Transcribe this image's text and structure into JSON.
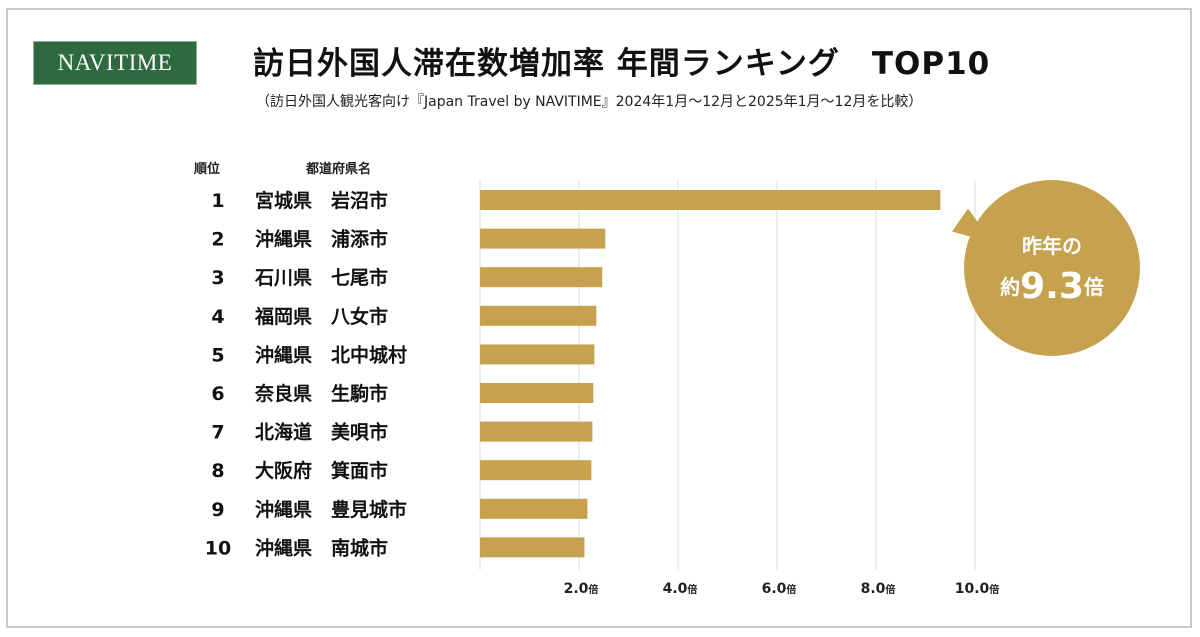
{
  "logo": "NAVITIME",
  "title": "訪日外国人滞在数増加率 年間ランキング　TOP10",
  "subtitle": "（訪日外国人観光客向け『Japan Travel by NAVITIME』2024年1月～12月と2025年1月～12月を比較）",
  "headers": {
    "rank": "順位",
    "name": "都道府県名"
  },
  "callout": {
    "line1": "昨年の",
    "prefix": "約",
    "value": "9.3",
    "suffix": "倍"
  },
  "chart_data": {
    "type": "bar",
    "orientation": "horizontal",
    "ranks": [
      "1",
      "2",
      "3",
      "4",
      "5",
      "6",
      "7",
      "8",
      "9",
      "10"
    ],
    "categories": [
      "宮城県　岩沼市",
      "沖縄県　浦添市",
      "石川県　七尾市",
      "福岡県　八女市",
      "沖縄県　北中城村",
      "奈良県　生駒市",
      "北海道　美唄市",
      "大阪府　箕面市",
      "沖縄県　豊見城市",
      "沖縄県　南城市"
    ],
    "values": [
      9.3,
      2.53,
      2.47,
      2.35,
      2.31,
      2.29,
      2.27,
      2.25,
      2.17,
      2.11
    ],
    "xlim": [
      0,
      10
    ],
    "ticks": [
      2,
      4,
      6,
      8,
      10
    ],
    "tick_labels": [
      "2.0",
      "4.0",
      "6.0",
      "8.0",
      "10.0"
    ],
    "tick_unit": "倍",
    "grid": true,
    "bar_color": "#c6a24f"
  }
}
